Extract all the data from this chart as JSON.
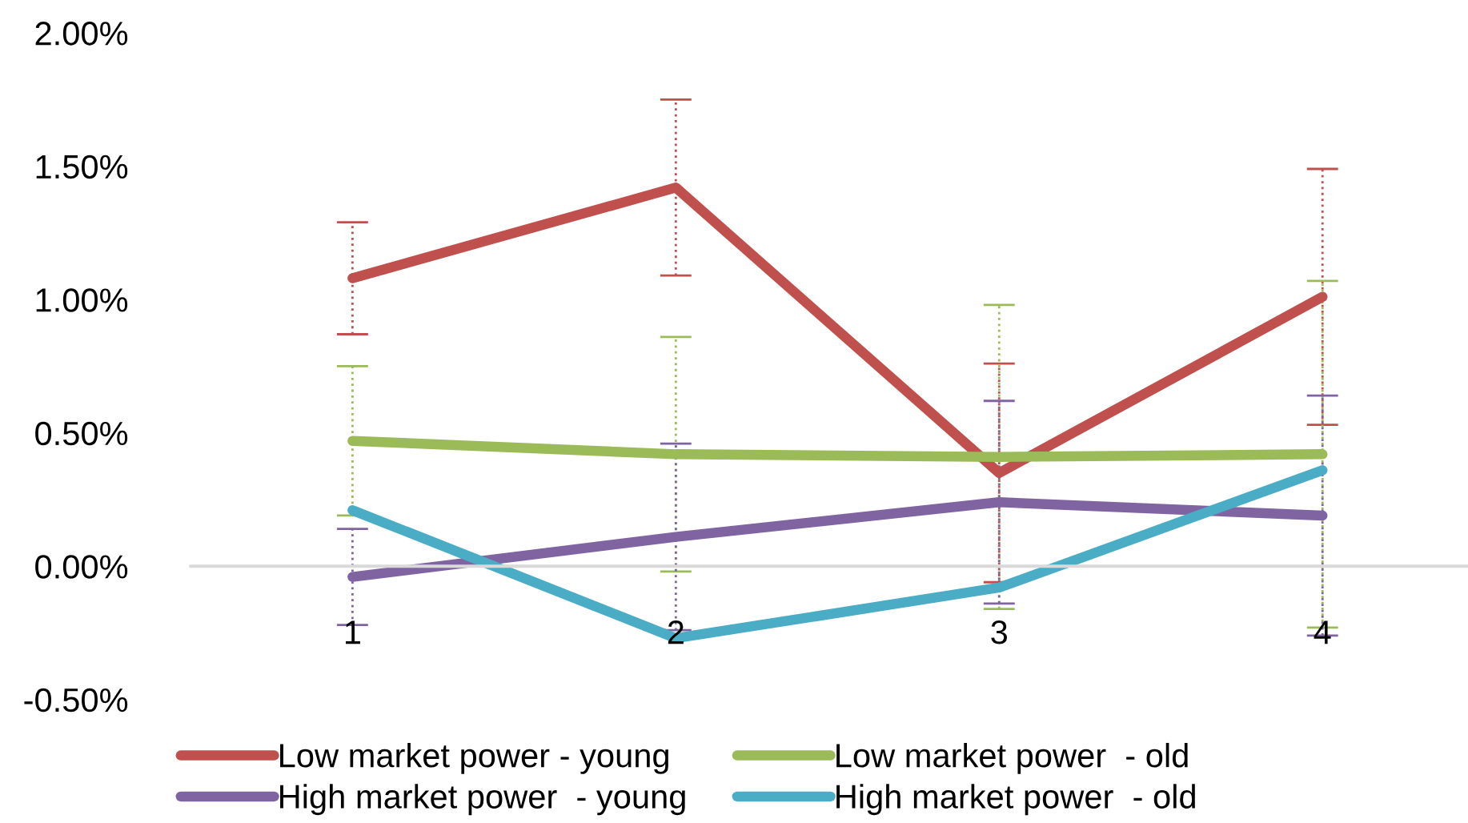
{
  "chart_data": {
    "type": "line",
    "categories": [
      "1",
      "2",
      "3",
      "4"
    ],
    "series": [
      {
        "name": "Low market power - young",
        "color": "#c0504d",
        "values": [
          1.08,
          1.42,
          0.35,
          1.01
        ],
        "errors": [
          0.21,
          0.33,
          0.41,
          0.48
        ]
      },
      {
        "name": "Low market power  - old",
        "color": "#9bbb59",
        "values": [
          0.47,
          0.42,
          0.41,
          0.42
        ],
        "errors": [
          0.28,
          0.44,
          0.57,
          0.65
        ]
      },
      {
        "name": "High market power  - young",
        "color": "#8064a2",
        "values": [
          -0.04,
          0.11,
          0.24,
          0.19
        ],
        "errors": [
          0.18,
          0.35,
          0.38,
          0.45
        ]
      },
      {
        "name": "High market power  - old",
        "color": "#4bacc6",
        "values": [
          0.21,
          -0.27,
          -0.08,
          0.36
        ]
      }
    ],
    "ylim": [
      -0.5,
      2.0
    ],
    "yticks": [
      {
        "value": -0.5,
        "label": "-0.50%"
      },
      {
        "value": 0,
        "label": "0.00%"
      },
      {
        "value": 0.5,
        "label": "0.50%"
      },
      {
        "value": 1.0,
        "label": "1.00%"
      },
      {
        "value": 1.5,
        "label": "1.50%"
      },
      {
        "value": 2.0,
        "label": "2.00%"
      }
    ],
    "grid": false,
    "legend": "bottom",
    "marker": "none",
    "line_style": "solid"
  }
}
